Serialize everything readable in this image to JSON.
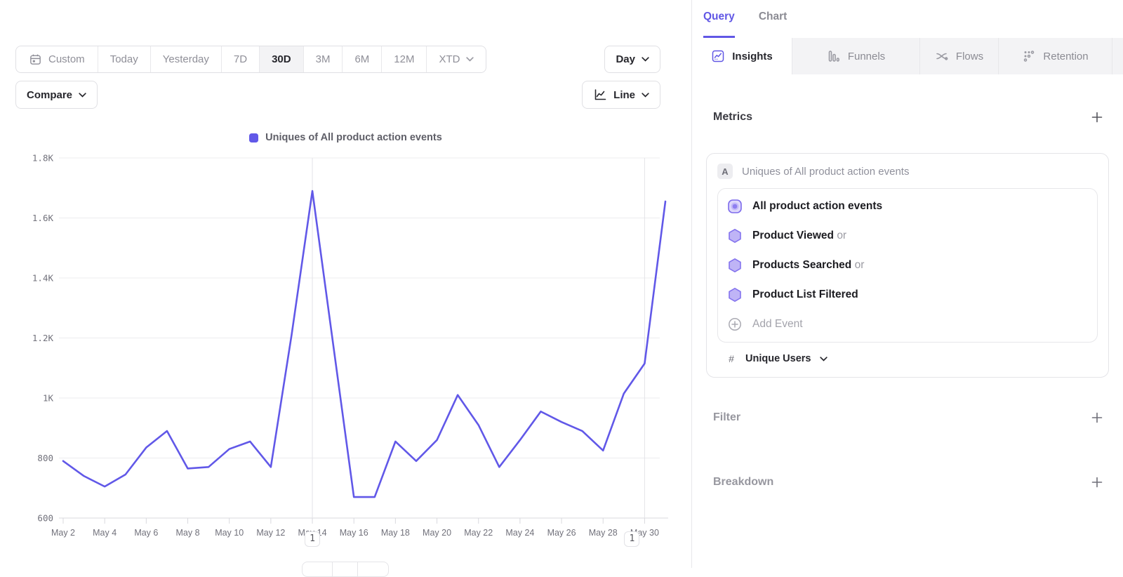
{
  "toolbar": {
    "date_ranges": [
      "Custom",
      "Today",
      "Yesterday",
      "7D",
      "30D",
      "3M",
      "6M",
      "12M",
      "XTD"
    ],
    "active_range": "30D",
    "granularity_label": "Day",
    "compare_label": "Compare",
    "chart_type_label": "Line"
  },
  "right_panel": {
    "query_tab": "Query",
    "chart_tab": "Chart",
    "report_tabs": [
      {
        "label": "Insights"
      },
      {
        "label": "Funnels"
      },
      {
        "label": "Flows"
      },
      {
        "label": "Retention"
      }
    ],
    "active_report_tab": "Insights",
    "metrics": {
      "title": "Metrics",
      "group_badge": "A",
      "group_label": "Uniques of All product action events",
      "events": [
        {
          "label": "All product action events",
          "suffix": ""
        },
        {
          "label": "Product Viewed",
          "suffix": "or"
        },
        {
          "label": "Products Searched",
          "suffix": "or"
        },
        {
          "label": "Product List Filtered",
          "suffix": ""
        }
      ],
      "add_event_label": "Add Event",
      "aggregation": {
        "symbol": "#",
        "label": "Unique Users"
      }
    },
    "filter": {
      "title": "Filter"
    },
    "breakdown": {
      "title": "Breakdown"
    }
  },
  "chart_data": {
    "type": "line",
    "legend": [
      {
        "label": "Uniques of All product action events",
        "color": "#6158e8"
      }
    ],
    "x": [
      "May 2",
      "May 3",
      "May 4",
      "May 5",
      "May 6",
      "May 7",
      "May 8",
      "May 9",
      "May 10",
      "May 11",
      "May 12",
      "May 13",
      "May 14",
      "May 15",
      "May 16",
      "May 17",
      "May 18",
      "May 19",
      "May 20",
      "May 21",
      "May 22",
      "May 23",
      "May 24",
      "May 25",
      "May 26",
      "May 27",
      "May 28",
      "May 29",
      "May 30",
      "May 31"
    ],
    "series": [
      {
        "name": "Uniques of All product action events",
        "color": "#6158e8",
        "values": [
          790,
          740,
          705,
          745,
          835,
          890,
          765,
          770,
          830,
          855,
          770,
          1210,
          1690,
          1180,
          670,
          670,
          855,
          790,
          860,
          1010,
          910,
          770,
          860,
          955,
          920,
          890,
          825,
          1015,
          1115,
          1655
        ]
      }
    ],
    "ylim": [
      600,
      1800
    ],
    "yticks": [
      {
        "value": 600,
        "label": "600"
      },
      {
        "value": 800,
        "label": "800"
      },
      {
        "value": 1000,
        "label": "1K"
      },
      {
        "value": 1200,
        "label": "1.2K"
      },
      {
        "value": 1400,
        "label": "1.4K"
      },
      {
        "value": 1600,
        "label": "1.6K"
      },
      {
        "value": 1800,
        "label": "1.8K"
      }
    ],
    "x_tick_every": 2,
    "grid": true,
    "legend_position": "top-center",
    "annotations": [
      {
        "label": "1",
        "x_index": 12
      },
      {
        "label": "1",
        "x_index": 28
      }
    ]
  }
}
